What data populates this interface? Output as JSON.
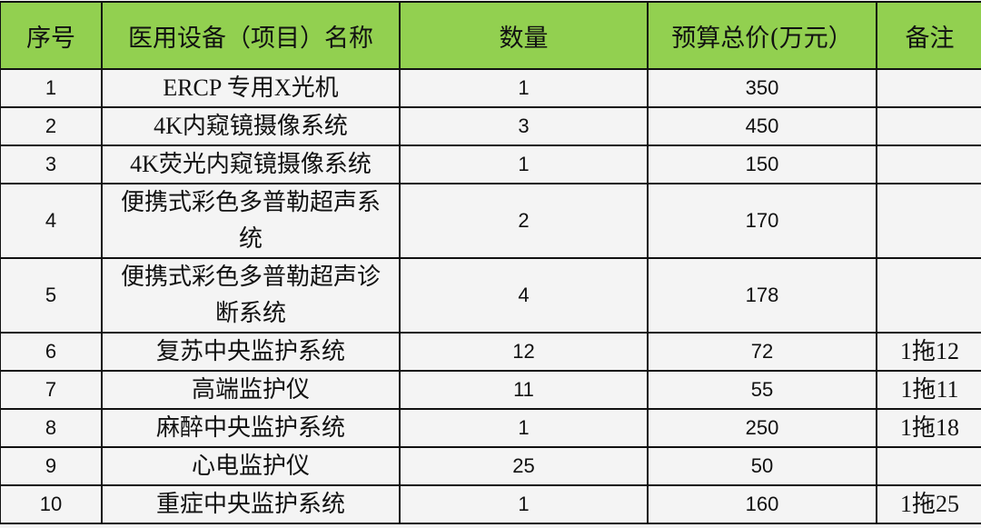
{
  "header": {
    "index": "序号",
    "name": "医用设备（项目）名称",
    "quantity": "数量",
    "budget": "预算总价(万元）",
    "note": "备注"
  },
  "header_color": "#92d050",
  "rows": [
    {
      "index": "1",
      "name": "ERCP 专用X光机",
      "quantity": "1",
      "budget": "350",
      "note": ""
    },
    {
      "index": "2",
      "name": "4K内窥镜摄像系统",
      "quantity": "3",
      "budget": "450",
      "note": ""
    },
    {
      "index": "3",
      "name": "4K荧光内窥镜摄像系统",
      "quantity": "1",
      "budget": "150",
      "note": ""
    },
    {
      "index": "4",
      "name": "便携式彩色多普勒超声系统",
      "quantity": "2",
      "budget": "170",
      "note": ""
    },
    {
      "index": "5",
      "name": "便携式彩色多普勒超声诊断系统",
      "quantity": "4",
      "budget": "178",
      "note": ""
    },
    {
      "index": "6",
      "name": "复苏中央监护系统",
      "quantity": "12",
      "budget": "72",
      "note": "1拖12"
    },
    {
      "index": "7",
      "name": "高端监护仪",
      "quantity": "11",
      "budget": "55",
      "note": "1拖11"
    },
    {
      "index": "8",
      "name": "麻醉中央监护系统",
      "quantity": "1",
      "budget": "250",
      "note": "1拖18"
    },
    {
      "index": "9",
      "name": "心电监护仪",
      "quantity": "25",
      "budget": "50",
      "note": ""
    },
    {
      "index": "10",
      "name": "重症中央监护系统",
      "quantity": "1",
      "budget": "160",
      "note": "1拖25"
    }
  ]
}
